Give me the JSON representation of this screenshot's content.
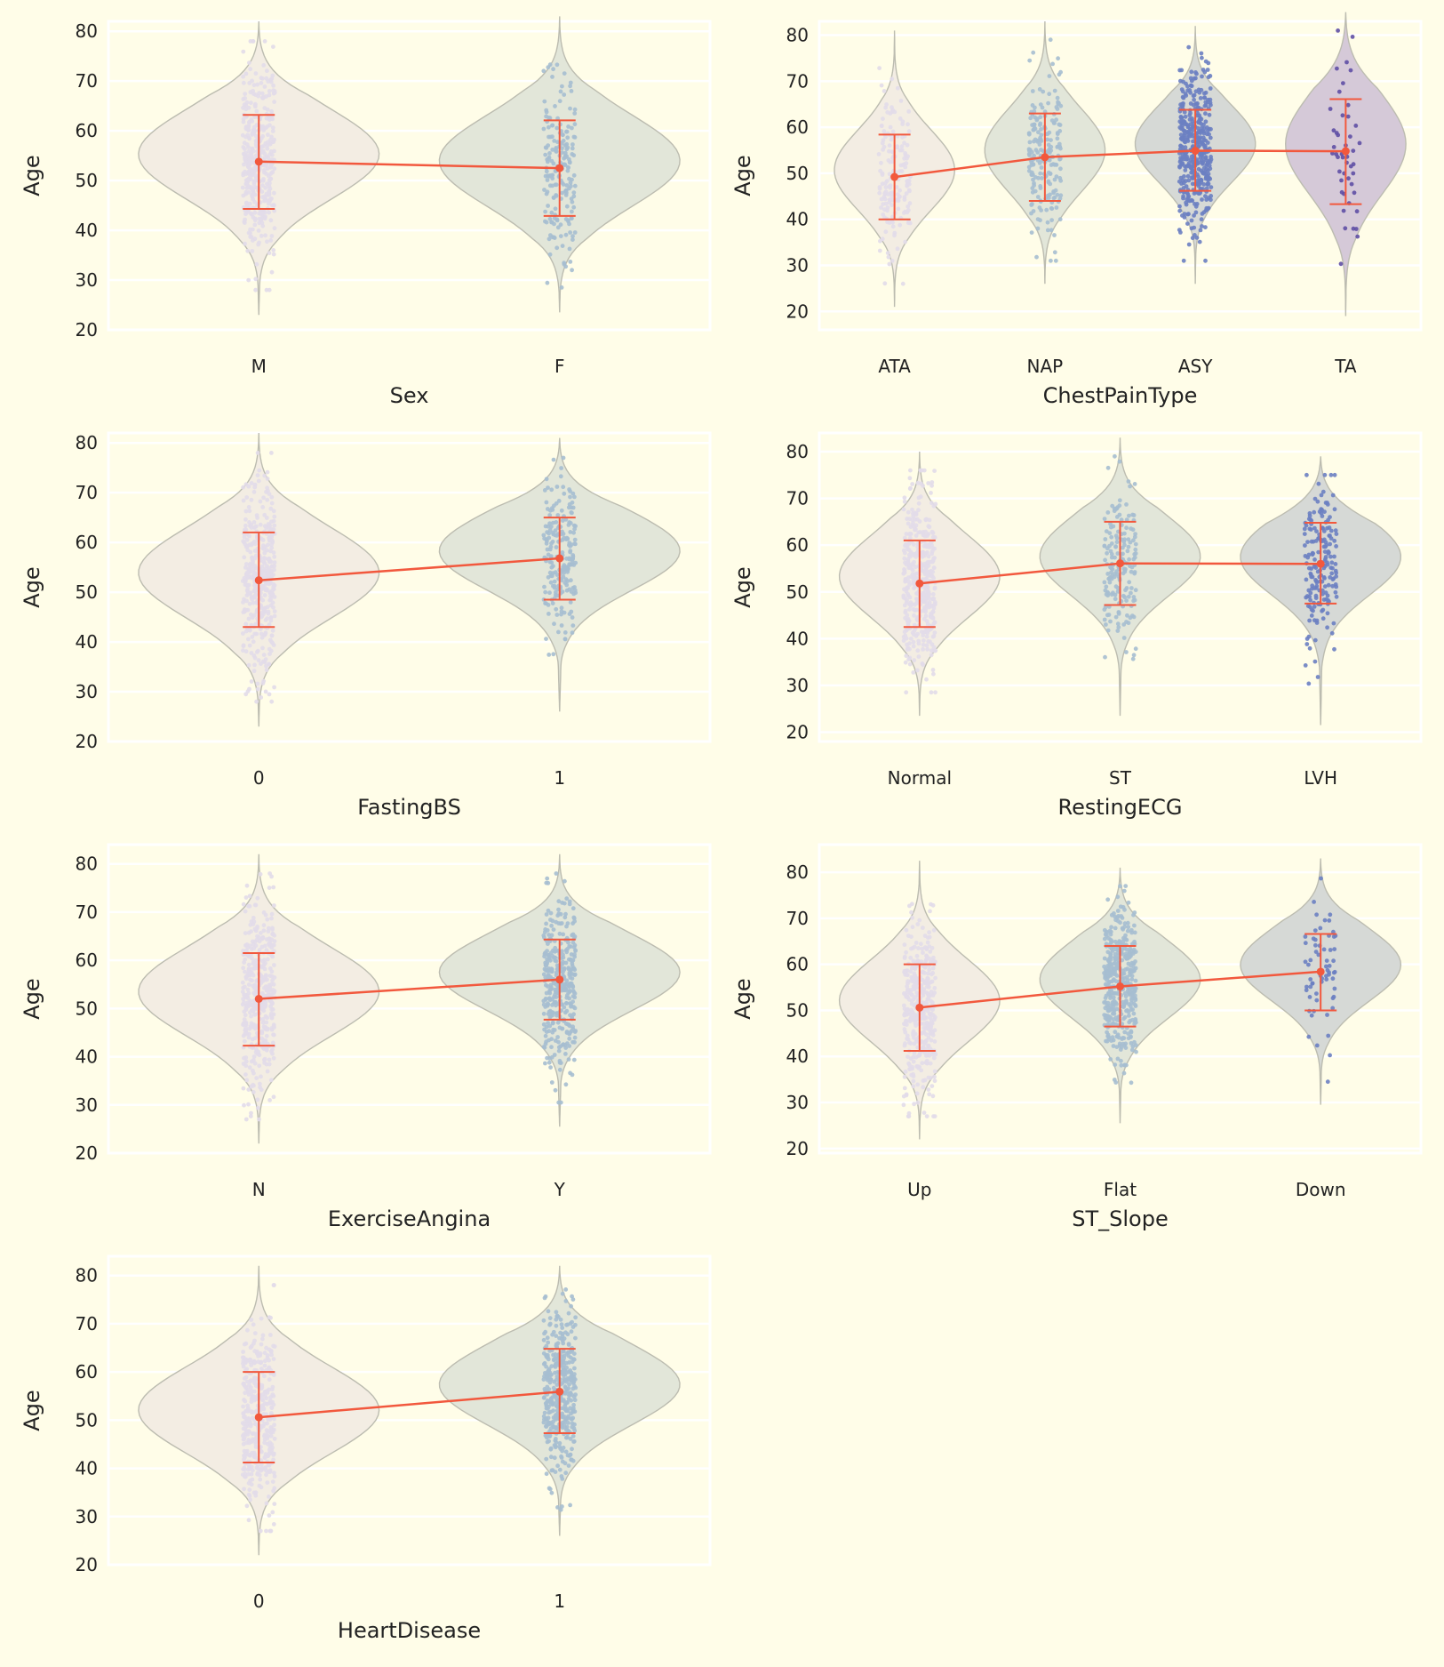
{
  "colors": {
    "background": "#fffde8",
    "grid": "#ffffff",
    "violin_fills": [
      "#f3ede3",
      "#e2e6d9",
      "#d6d9d6",
      "#d5c9d8"
    ],
    "violin_edge": "#bcbcb0",
    "point_colors": [
      "#e2dbe9",
      "#a6bed0",
      "#6b7fc2",
      "#5f4fa5"
    ],
    "mean_line": "#f2583d"
  },
  "chart_data": [
    {
      "type": "violin",
      "xlabel": "Sex",
      "ylabel": "Age",
      "yticks": [
        20,
        30,
        40,
        50,
        60,
        70,
        80
      ],
      "ylim": [
        20,
        82
      ],
      "categories": [
        "M",
        "F"
      ],
      "means": [
        53.8,
        52.5
      ],
      "sd_low": [
        44.3,
        42.9
      ],
      "sd_high": [
        63.2,
        62.1
      ],
      "kde_extent": [
        [
          23,
          82
        ],
        [
          23.5,
          83
        ]
      ],
      "n_points": [
        725,
        193
      ],
      "grid": true
    },
    {
      "type": "violin",
      "xlabel": "ChestPainType",
      "ylabel": "Age",
      "yticks": [
        20,
        30,
        40,
        50,
        60,
        70,
        80
      ],
      "ylim": [
        16,
        83
      ],
      "categories": [
        "ATA",
        "NAP",
        "ASY",
        "TA"
      ],
      "means": [
        49.2,
        53.5,
        54.9,
        54.8
      ],
      "sd_low": [
        40.0,
        44.0,
        46.2,
        43.3
      ],
      "sd_high": [
        58.4,
        63.0,
        63.8,
        66.1
      ],
      "kde_extent": [
        [
          21,
          81
        ],
        [
          26,
          83
        ],
        [
          26,
          82
        ],
        [
          19,
          85
        ]
      ],
      "n_points": [
        173,
        203,
        496,
        46
      ],
      "grid": true
    },
    {
      "type": "violin",
      "xlabel": "FastingBS",
      "ylabel": "Age",
      "yticks": [
        20,
        30,
        40,
        50,
        60,
        70,
        80
      ],
      "ylim": [
        20,
        82
      ],
      "categories": [
        "0",
        "1"
      ],
      "means": [
        52.4,
        56.8
      ],
      "sd_low": [
        43.0,
        48.5
      ],
      "sd_high": [
        62.0,
        65.0
      ],
      "kde_extent": [
        [
          23,
          82
        ],
        [
          26,
          81
        ]
      ],
      "n_points": [
        704,
        214
      ],
      "grid": true
    },
    {
      "type": "violin",
      "xlabel": "RestingECG",
      "ylabel": "Age",
      "yticks": [
        20,
        30,
        40,
        50,
        60,
        70,
        80
      ],
      "ylim": [
        18,
        84
      ],
      "categories": [
        "Normal",
        "ST",
        "LVH"
      ],
      "means": [
        51.8,
        56.1,
        56.0
      ],
      "sd_low": [
        42.5,
        47.2,
        47.5
      ],
      "sd_high": [
        61.0,
        65.0,
        64.8
      ],
      "kde_extent": [
        [
          23.5,
          80
        ],
        [
          23.5,
          83
        ],
        [
          21.5,
          79
        ]
      ],
      "n_points": [
        552,
        178,
        188
      ],
      "grid": true
    },
    {
      "type": "violin",
      "xlabel": "ExerciseAngina",
      "ylabel": "Age",
      "yticks": [
        20,
        30,
        40,
        50,
        60,
        70,
        80
      ],
      "ylim": [
        20,
        84
      ],
      "categories": [
        "N",
        "Y"
      ],
      "means": [
        52.0,
        56.0
      ],
      "sd_low": [
        42.3,
        47.7
      ],
      "sd_high": [
        61.5,
        64.3
      ],
      "kde_extent": [
        [
          22,
          82
        ],
        [
          25.5,
          82
        ]
      ],
      "n_points": [
        547,
        371
      ],
      "grid": true
    },
    {
      "type": "violin",
      "xlabel": "ST_Slope",
      "ylabel": "Age",
      "yticks": [
        20,
        30,
        40,
        50,
        60,
        70,
        80
      ],
      "ylim": [
        19,
        86
      ],
      "categories": [
        "Up",
        "Flat",
        "Down"
      ],
      "means": [
        50.6,
        55.2,
        58.4
      ],
      "sd_low": [
        41.2,
        46.5,
        50.0
      ],
      "sd_high": [
        60.0,
        64.0,
        66.6
      ],
      "kde_extent": [
        [
          22,
          82.5
        ],
        [
          25.5,
          81
        ],
        [
          29.5,
          83
        ]
      ],
      "n_points": [
        395,
        460,
        63
      ],
      "grid": true
    },
    {
      "type": "violin",
      "xlabel": "HeartDisease",
      "ylabel": "Age",
      "yticks": [
        20,
        30,
        40,
        50,
        60,
        70,
        80
      ],
      "ylim": [
        20,
        84
      ],
      "categories": [
        "0",
        "1"
      ],
      "means": [
        50.6,
        55.9
      ],
      "sd_low": [
        41.2,
        47.3
      ],
      "sd_high": [
        60.0,
        64.8
      ],
      "kde_extent": [
        [
          22,
          82
        ],
        [
          26,
          82
        ]
      ],
      "n_points": [
        410,
        508
      ],
      "grid": true
    }
  ]
}
